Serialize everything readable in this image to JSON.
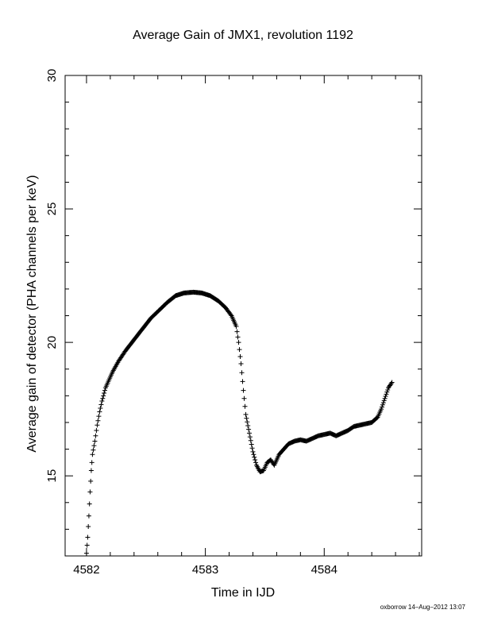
{
  "chart_data": {
    "type": "scatter",
    "title": "Average Gain of JMX1, revolution 1192",
    "xlabel": "Time in IJD",
    "ylabel": "Average gain of detector (PHA channels per keV)",
    "xlim": [
      4581.82,
      4584.82
    ],
    "ylim": [
      12.0,
      30.0
    ],
    "x_ticks": [
      4582,
      4583,
      4584
    ],
    "y_ticks": [
      15,
      20,
      25,
      30
    ],
    "marker": "+",
    "grid": false,
    "series": [
      {
        "points": [
          [
            4582.0,
            12.1
          ],
          [
            4582.01,
            12.7
          ],
          [
            4582.02,
            13.5
          ],
          [
            4582.03,
            14.4
          ],
          [
            4582.04,
            15.2
          ],
          [
            4582.05,
            15.8
          ],
          [
            4582.07,
            16.3
          ],
          [
            4582.09,
            16.9
          ],
          [
            4582.11,
            17.4
          ],
          [
            4582.13,
            17.8
          ],
          [
            4582.16,
            18.3
          ],
          [
            4582.19,
            18.6
          ],
          [
            4582.22,
            18.9
          ],
          [
            4582.27,
            19.3
          ],
          [
            4582.33,
            19.7
          ],
          [
            4582.4,
            20.1
          ],
          [
            4582.47,
            20.5
          ],
          [
            4582.54,
            20.9
          ],
          [
            4582.61,
            21.2
          ],
          [
            4582.68,
            21.5
          ],
          [
            4582.75,
            21.75
          ],
          [
            4582.82,
            21.85
          ],
          [
            4582.9,
            21.88
          ],
          [
            4582.97,
            21.85
          ],
          [
            4583.04,
            21.75
          ],
          [
            4583.11,
            21.55
          ],
          [
            4583.17,
            21.3
          ],
          [
            4583.22,
            21.0
          ],
          [
            4583.26,
            20.6
          ],
          [
            4583.28,
            20.0
          ],
          [
            4583.3,
            19.2
          ],
          [
            4583.32,
            18.2
          ],
          [
            4583.34,
            17.3
          ],
          [
            4583.37,
            16.6
          ],
          [
            4583.4,
            15.9
          ],
          [
            4583.43,
            15.4
          ],
          [
            4583.46,
            15.15
          ],
          [
            4583.49,
            15.2
          ],
          [
            4583.52,
            15.5
          ],
          [
            4583.55,
            15.6
          ],
          [
            4583.58,
            15.4
          ],
          [
            4583.62,
            15.8
          ],
          [
            4583.66,
            16.0
          ],
          [
            4583.7,
            16.2
          ],
          [
            4583.75,
            16.3
          ],
          [
            4583.8,
            16.35
          ],
          [
            4583.85,
            16.3
          ],
          [
            4583.9,
            16.4
          ],
          [
            4583.95,
            16.5
          ],
          [
            4584.0,
            16.55
          ],
          [
            4584.05,
            16.6
          ],
          [
            4584.1,
            16.5
          ],
          [
            4584.15,
            16.6
          ],
          [
            4584.2,
            16.7
          ],
          [
            4584.25,
            16.85
          ],
          [
            4584.3,
            16.9
          ],
          [
            4584.35,
            16.95
          ],
          [
            4584.4,
            17.0
          ],
          [
            4584.45,
            17.2
          ],
          [
            4584.48,
            17.5
          ],
          [
            4584.51,
            17.9
          ],
          [
            4584.54,
            18.3
          ],
          [
            4584.57,
            18.5
          ]
        ]
      }
    ]
  },
  "footer": "oxborrow 14–Aug–2012 13:07"
}
